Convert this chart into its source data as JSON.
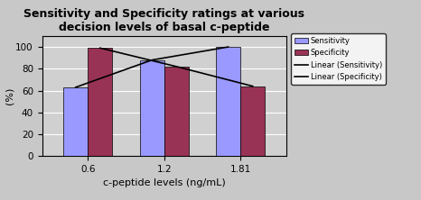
{
  "title": "Sensitivity and Specificity ratings at various\ndecision levels of basal c-peptide",
  "xlabel": "c-peptide levels (ng/mL)",
  "ylabel": "(%)",
  "categories": [
    "0.6",
    "1.2",
    "1.81"
  ],
  "sensitivity": [
    63,
    88,
    100
  ],
  "specificity": [
    99,
    82,
    64
  ],
  "sensitivity_color": "#9999ff",
  "specificity_color": "#993355",
  "bar_width": 0.32,
  "ylim": [
    0,
    110
  ],
  "yticks": [
    0,
    20,
    40,
    60,
    80,
    100
  ],
  "bg_color": "#c8c8c8",
  "plot_bg_color": "#d0d0d0",
  "legend_items": [
    "Sensitivity",
    "Specificity",
    "Linear (Sensitivity)",
    "Linear (Specificity)"
  ],
  "title_fontsize": 9,
  "axis_fontsize": 8,
  "tick_fontsize": 7.5
}
